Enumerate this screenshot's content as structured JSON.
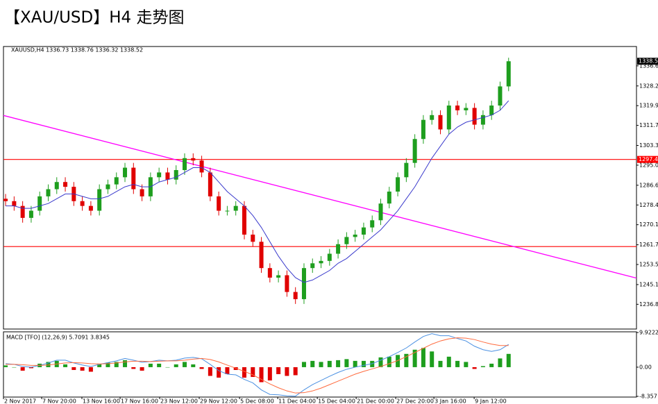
{
  "header": {
    "title": "【XAU/USD】H4 走势图"
  },
  "chart_data": [
    {
      "type": "candlestick",
      "title": "XAUUSD,H4 1336.73 1338.76 1336.32 1338.52",
      "xlim": [
        -0.25,
        74
      ],
      "xticks": [
        {
          "value": -0.25,
          "label": "2 Nov 2017"
        },
        {
          "value": 4.23,
          "label": "7 Nov 20:00"
        },
        {
          "value": 8.95,
          "label": "13 Nov 16:00"
        },
        {
          "value": 13.43,
          "label": "17 Nov 16:00"
        },
        {
          "value": 18.07,
          "label": "23 Nov 12:00"
        },
        {
          "value": 22.71,
          "label": "29 Nov 12:00"
        },
        {
          "value": 27.44,
          "label": "5 Dec 08:00"
        },
        {
          "value": 31.92,
          "label": "11 Dec 04:00"
        },
        {
          "value": 36.56,
          "label": "15 Dec 04:00"
        },
        {
          "value": 41.12,
          "label": "21 Dec 00:00"
        },
        {
          "value": 45.76,
          "label": "27 Dec 20:00"
        },
        {
          "value": 50.24,
          "label": "3 Jan 16:00"
        },
        {
          "value": 54.96,
          "label": "9 Jan 12:00"
        }
      ],
      "ylim": [
        1226.5,
        1344.4
      ],
      "yticks": [
        {
          "value": 1336.6,
          "label": "1336.60"
        },
        {
          "value": 1328.2,
          "label": "1328.20"
        },
        1319.95,
        {
          "value": 1311.7,
          "label": "1311.70"
        },
        {
          "value": 1303.3,
          "label": "1303.30"
        },
        1295.05,
        1286.65,
        {
          "value": 1278.4,
          "label": "1278.40"
        },
        1270.15,
        1261.75,
        {
          "value": 1253.5,
          "label": "1253.50"
        },
        {
          "value": 1245.1,
          "label": "1245.10"
        },
        1236.85
      ],
      "up_color": "#1e9e1e",
      "down_color": "#e00000",
      "open": [
        1281,
        1280,
        1278,
        1273,
        1276,
        1282,
        1285,
        1288,
        1286,
        1280,
        1278,
        1276,
        1285,
        1287,
        1290,
        1294,
        1285,
        1282,
        1290,
        1292,
        1289,
        1293,
        1298,
        1297,
        1292,
        1282,
        1276,
        1276,
        1278,
        1266,
        1263,
        1252,
        1248,
        1249,
        1242,
        1239,
        1252,
        1254,
        1255,
        1258,
        1262,
        1265,
        1266,
        1269,
        1272,
        1279,
        1284,
        1290,
        1296,
        1306,
        1314,
        1316,
        1310,
        1320,
        1318,
        1319,
        1312,
        1316,
        1320,
        1328
      ],
      "high": [
        1283,
        1282,
        1280,
        1278,
        1284,
        1287,
        1290,
        1290,
        1288,
        1282,
        1280,
        1287,
        1289,
        1292,
        1296,
        1296,
        1287,
        1292,
        1294,
        1294,
        1295,
        1300,
        1300,
        1299,
        1294,
        1284,
        1278,
        1280,
        1280,
        1268,
        1265,
        1254,
        1251,
        1251,
        1244,
        1254,
        1256,
        1257,
        1260,
        1264,
        1267,
        1268,
        1271,
        1274,
        1281,
        1286,
        1292,
        1298,
        1308,
        1316,
        1318,
        1318,
        1322,
        1322,
        1321,
        1321,
        1318,
        1322,
        1330,
        1340
      ],
      "low": [
        1278,
        1276,
        1271,
        1271,
        1274,
        1280,
        1283,
        1284,
        1278,
        1276,
        1274,
        1274,
        1283,
        1285,
        1288,
        1283,
        1280,
        1280,
        1288,
        1287,
        1287,
        1291,
        1295,
        1290,
        1280,
        1274,
        1274,
        1274,
        1264,
        1261,
        1250,
        1246,
        1246,
        1240,
        1237,
        1237,
        1250,
        1252,
        1253,
        1256,
        1260,
        1263,
        1264,
        1267,
        1270,
        1277,
        1282,
        1288,
        1294,
        1304,
        1312,
        1308,
        1308,
        1316,
        1316,
        1310,
        1310,
        1314,
        1318,
        1326
      ],
      "close": [
        1280,
        1278,
        1273,
        1276,
        1282,
        1285,
        1288,
        1286,
        1280,
        1278,
        1276,
        1285,
        1287,
        1290,
        1294,
        1285,
        1282,
        1290,
        1292,
        1289,
        1293,
        1298,
        1297,
        1292,
        1282,
        1276,
        1276,
        1278,
        1266,
        1263,
        1252,
        1248,
        1249,
        1242,
        1239,
        1252,
        1254,
        1255,
        1258,
        1262,
        1265,
        1266,
        1269,
        1272,
        1279,
        1284,
        1290,
        1296,
        1306,
        1314,
        1316,
        1310,
        1320,
        1318,
        1319,
        1312,
        1316,
        1320,
        1328,
        1338.52
      ],
      "ma": {
        "color": "#3a3acc",
        "values": [
          1278,
          1278,
          1277,
          1277,
          1278,
          1279,
          1281,
          1283,
          1283,
          1282,
          1281,
          1281,
          1282,
          1284,
          1286,
          1287,
          1286,
          1286,
          1288,
          1289,
          1290,
          1292,
          1294,
          1294,
          1292,
          1288,
          1284,
          1281,
          1278,
          1274,
          1269,
          1263,
          1257,
          1252,
          1248,
          1246,
          1247,
          1249,
          1251,
          1254,
          1256,
          1259,
          1262,
          1265,
          1268,
          1272,
          1276,
          1281,
          1286,
          1292,
          1298,
          1303,
          1308,
          1311,
          1313,
          1314,
          1315,
          1316,
          1318,
          1322
        ]
      },
      "hlines": [
        {
          "value": 1297.45,
          "label": "1297.45",
          "color": "#ff0000"
        },
        {
          "value": 1261,
          "color": "#ff0000"
        }
      ],
      "trendline": {
        "x": [
          -0.25,
          74
        ],
        "values": [
          1315.85,
          1247.8
        ],
        "color": "#ff00ff"
      },
      "last_price": {
        "value": 1338.52,
        "label": "1338.52"
      }
    },
    {
      "type": "macd",
      "title": "MACD [TFO] (12,26,9) 5.7091 3.8345",
      "ylim": [
        -8.357,
        9.9222
      ],
      "yticks": [
        9.9222,
        {
          "value": 0,
          "label": "0.00"
        },
        -8.357
      ],
      "up_color": "#1e9e1e",
      "down_color": "#e00000",
      "histogram": [
        0.5,
        0,
        -1,
        -0.3,
        1,
        1.5,
        1.8,
        0.8,
        -0.8,
        -1,
        -1.3,
        1,
        1.3,
        1.5,
        2,
        -0.5,
        -1,
        1,
        1,
        0,
        0.8,
        1.5,
        0.8,
        -0.5,
        -2.5,
        -3,
        -2,
        -0.8,
        -3,
        -2.8,
        -4.3,
        -3.8,
        -2,
        -2.5,
        -2.3,
        1.5,
        1.8,
        1.5,
        1.8,
        2,
        2.3,
        1.8,
        1.8,
        1.8,
        2.8,
        3,
        3.5,
        3.8,
        5,
        5.5,
        4.5,
        1.8,
        3,
        1.8,
        1.5,
        -0.5,
        0.3,
        1,
        2.5,
        3.8
      ],
      "series": [
        {
          "color": "#4a90e2",
          "values": [
            1,
            0.8,
            0.2,
            0,
            0.5,
            1.2,
            2,
            2,
            1.2,
            0.6,
            0.2,
            0.8,
            1.3,
            1.8,
            2.5,
            2,
            1.4,
            1.6,
            2,
            1.8,
            2,
            2.6,
            2.8,
            2.4,
            0.8,
            -1,
            -2,
            -2.2,
            -3.5,
            -4.5,
            -6.5,
            -7.8,
            -7.9,
            -8.2,
            -8.3,
            -6.5,
            -5,
            -3.8,
            -2.6,
            -1.5,
            -0.6,
            0,
            0.5,
            1,
            2,
            3,
            4.2,
            5.5,
            7.2,
            8.8,
            9.6,
            9,
            9,
            8.2,
            7.5,
            6,
            5,
            4.5,
            5,
            6.5
          ]
        },
        {
          "color": "#ff6a3d",
          "values": [
            0.8,
            0.8,
            0.7,
            0.5,
            0.5,
            0.6,
            0.9,
            1.2,
            1.3,
            1.2,
            1,
            0.9,
            1,
            1.2,
            1.5,
            1.7,
            1.7,
            1.6,
            1.7,
            1.8,
            1.8,
            2,
            2.3,
            2.5,
            2.2,
            1.5,
            0.6,
            -0.3,
            -1.2,
            -2.2,
            -3.5,
            -4.8,
            -5.9,
            -6.8,
            -7.4,
            -7.3,
            -6.8,
            -6,
            -5,
            -4,
            -3,
            -2,
            -1.2,
            -0.5,
            0.2,
            1,
            1.9,
            3,
            4.2,
            5.4,
            6.6,
            7.5,
            8.1,
            8.4,
            8.3,
            7.9,
            7.2,
            6.6,
            6.2,
            6.2
          ]
        }
      ]
    }
  ]
}
